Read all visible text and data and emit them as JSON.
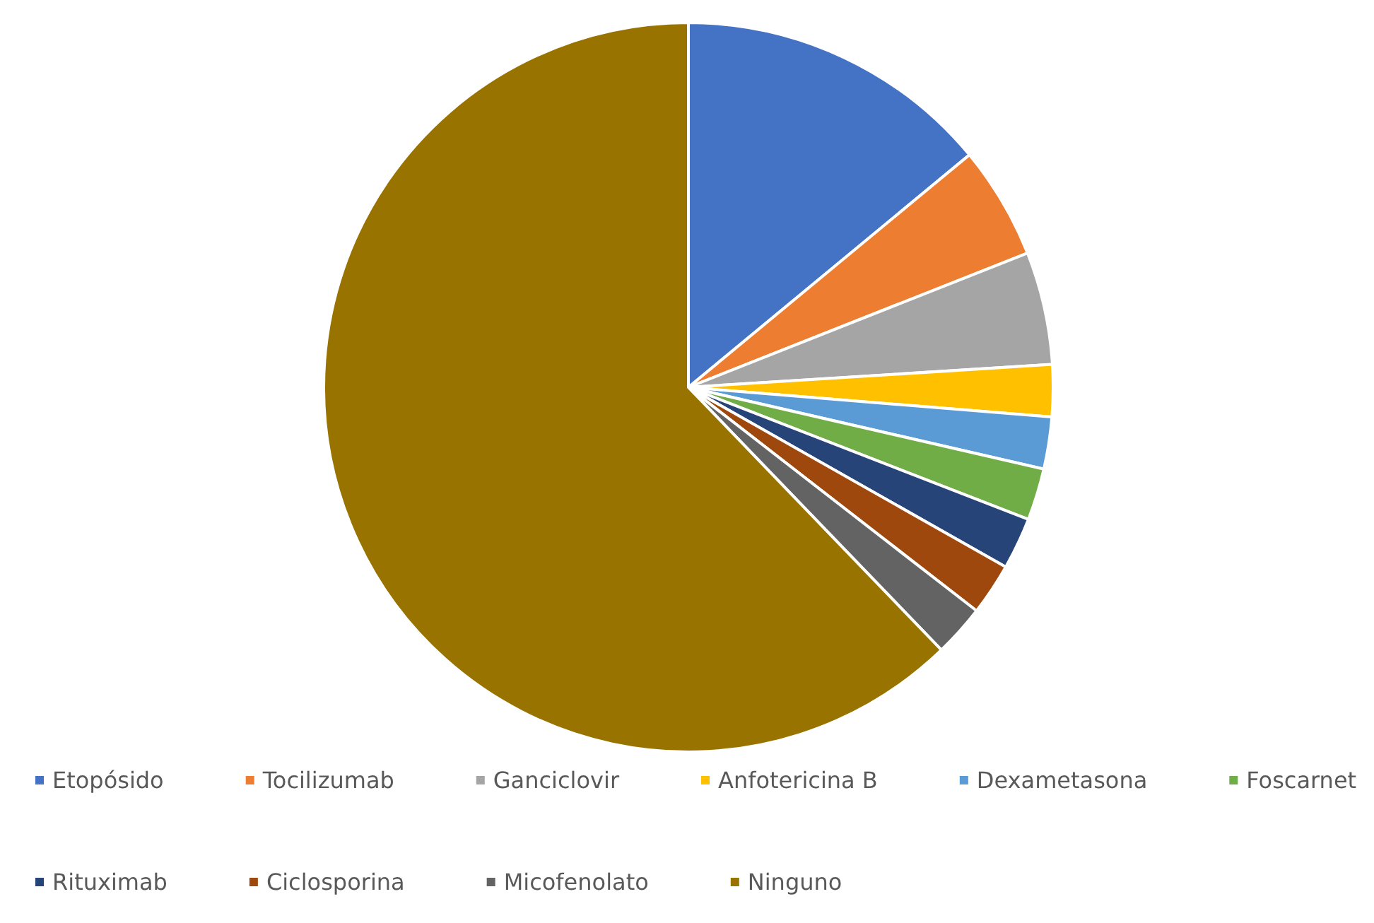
{
  "chart_data": {
    "type": "pie",
    "categories": [
      "Etopósido",
      "Tocilizumab",
      "Ganciclovir",
      "Anfotericina B",
      "Dexametasona",
      "Foscarnet",
      "Rituximab",
      "Ciclosporina",
      "Micofenolato",
      "Ninguno"
    ],
    "values": [
      14,
      5,
      5,
      2.3,
      2.3,
      2.3,
      2.3,
      2.3,
      2.3,
      62.2
    ],
    "colors": [
      "#4472c4",
      "#ed7d31",
      "#a5a5a5",
      "#ffc000",
      "#5b9bd5",
      "#70ad47",
      "#264478",
      "#9e480e",
      "#636363",
      "#997300"
    ],
    "legend": "bottom"
  }
}
